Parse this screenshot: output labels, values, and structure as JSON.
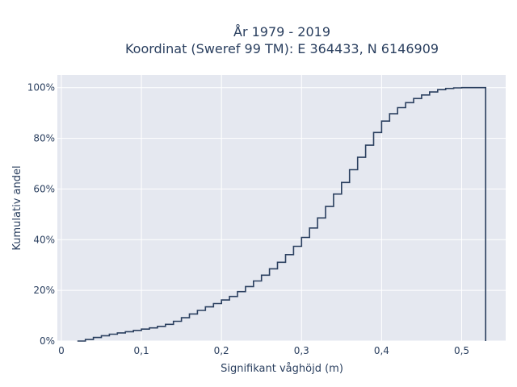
{
  "chart_data": {
    "type": "line",
    "line_shape": "step",
    "title_line1": "År 1979 - 2019",
    "title_line2": "Koordinat (Sweref 99 TM): E 364433, N 6146909",
    "xlabel": "Signifikant våghöjd (m)",
    "ylabel": "Kumulativ andel",
    "xlim": [
      -0.005,
      0.555
    ],
    "ylim": [
      0,
      1.05
    ],
    "x_ticks": [
      0,
      0.1,
      0.2,
      0.3,
      0.4,
      0.5
    ],
    "x_tick_labels": [
      "0",
      "0,1",
      "0,2",
      "0,3",
      "0,4",
      "0,5"
    ],
    "y_ticks": [
      0,
      0.2,
      0.4,
      0.6,
      0.8,
      1.0
    ],
    "y_tick_labels": [
      "0%",
      "20%",
      "40%",
      "60%",
      "80%",
      "100%"
    ],
    "grid": true,
    "colors": {
      "plot_bg": "#e5e8f0",
      "grid": "#ffffff",
      "line": "#2a3f5f",
      "text": "#2a3f5f"
    },
    "series": [
      {
        "x": [
          0.02,
          0.03,
          0.04,
          0.05,
          0.06,
          0.07,
          0.08,
          0.09,
          0.1,
          0.11,
          0.12,
          0.13,
          0.14,
          0.15,
          0.16,
          0.17,
          0.18,
          0.19,
          0.2,
          0.21,
          0.22,
          0.23,
          0.24,
          0.25,
          0.26,
          0.27,
          0.28,
          0.29,
          0.3,
          0.31,
          0.32,
          0.33,
          0.34,
          0.35,
          0.36,
          0.37,
          0.38,
          0.39,
          0.4,
          0.41,
          0.42,
          0.43,
          0.44,
          0.45,
          0.46,
          0.47,
          0.48,
          0.49,
          0.5,
          0.51,
          0.52,
          0.53
        ],
        "y": [
          0.0,
          0.006,
          0.014,
          0.021,
          0.027,
          0.032,
          0.037,
          0.042,
          0.047,
          0.052,
          0.058,
          0.066,
          0.078,
          0.092,
          0.107,
          0.121,
          0.135,
          0.148,
          0.162,
          0.176,
          0.195,
          0.215,
          0.237,
          0.26,
          0.285,
          0.311,
          0.341,
          0.374,
          0.409,
          0.446,
          0.486,
          0.531,
          0.58,
          0.626,
          0.676,
          0.725,
          0.773,
          0.823,
          0.868,
          0.897,
          0.921,
          0.941,
          0.957,
          0.971,
          0.983,
          0.992,
          0.997,
          0.999,
          1.0,
          1.0,
          1.0,
          0.0
        ]
      }
    ]
  }
}
